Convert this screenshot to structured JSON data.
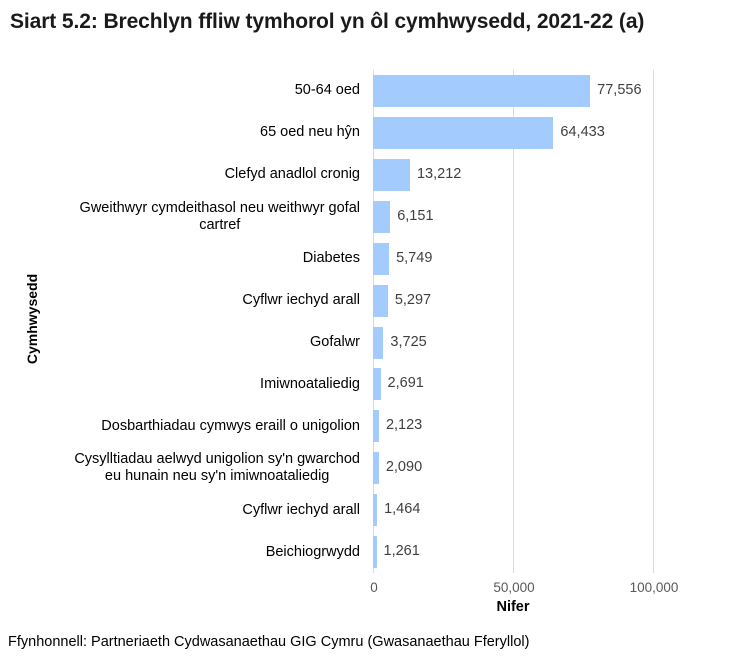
{
  "chart_data": {
    "type": "bar",
    "orientation": "horizontal",
    "title": "Siart 5.2: Brechlyn ffliw tymhorol yn ôl cymhwysedd, 2021-22 (a)",
    "xlabel": "Nifer",
    "ylabel": "Cymhwysedd",
    "xlim": [
      0,
      100000
    ],
    "xticks": [
      "0",
      "50,000",
      "100,000"
    ],
    "grid": true,
    "legend": null,
    "bar_color": "#a4cbfd",
    "categories": [
      "50-64 oed",
      "65 oed neu hŷn",
      "Clefyd anadlol cronig",
      "Gweithwyr cymdeithasol neu weithwyr gofal cartref",
      "Diabetes",
      "Cyflwr iechyd arall",
      "Gofalwr",
      "Imiwnoataliedig",
      "Dosbarthiadau cymwys eraill o unigolion",
      "Cysylltiadau aelwyd unigolion sy'n gwarchod eu hunain neu sy'n imiwnoataliedig",
      "Cyflwr iechyd arall",
      "Beichiogrwydd"
    ],
    "values": [
      77556,
      64433,
      13212,
      6151,
      5749,
      5297,
      3725,
      2691,
      2123,
      2090,
      1464,
      1261
    ],
    "value_labels": [
      "77,556",
      "64,433",
      "13,212",
      "6,151",
      "5,749",
      "5,297",
      "3,725",
      "2,691",
      "2,123",
      "2,090",
      "1,464",
      "1,261"
    ],
    "category_lines": [
      [
        "50-64 oed"
      ],
      [
        "65 oed neu hŷn"
      ],
      [
        "Clefyd anadlol cronig"
      ],
      [
        "Gweithwyr cymdeithasol neu weithwyr gofal",
        "cartref"
      ],
      [
        "Diabetes"
      ],
      [
        "Cyflwr iechyd arall"
      ],
      [
        "Gofalwr"
      ],
      [
        "Imiwnoataliedig"
      ],
      [
        "Dosbarthiadau cymwys eraill o unigolion"
      ],
      [
        "Cysylltiadau aelwyd unigolion sy'n gwarchod",
        "eu hunain neu sy'n imiwnoataliedig"
      ],
      [
        "Cyflwr iechyd arall"
      ],
      [
        "Beichiogrwydd"
      ]
    ],
    "source": "Ffynhonnell: Partneriaeth Cydwasanaethau GIG Cymru (Gwasanaethau Fferyllol)"
  }
}
